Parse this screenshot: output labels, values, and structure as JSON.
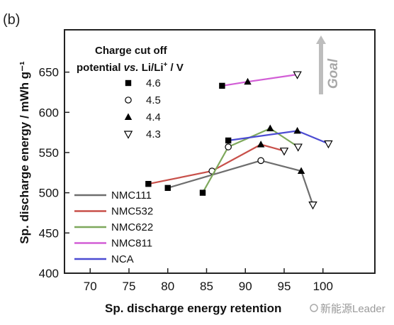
{
  "panel_label": "(b)",
  "watermark": "新能源Leader",
  "goal_label": "Goal",
  "chart_data": {
    "type": "scatter",
    "xlabel": "Sp. discharge energy retention",
    "ylabel": "Sp. discharge energy / mWh g⁻¹",
    "xlim": [
      65,
      105
    ],
    "ylim": [
      375,
      675
    ],
    "xticks": [
      70,
      75,
      80,
      85,
      90,
      95,
      100
    ],
    "yticks": [
      400,
      450,
      500,
      550,
      600,
      650
    ],
    "marker_legend": {
      "title_line1": "Charge cut off",
      "title_line2_pre": "potential ",
      "title_line2_vs": "vs.",
      "title_line2_post": " Li/Li",
      "title_line2_sup": "+",
      "title_line2_unit": " / V",
      "entries": [
        {
          "label": "4.6",
          "marker": "square"
        },
        {
          "label": "4.5",
          "marker": "circle"
        },
        {
          "label": "4.4",
          "marker": "triangle-up"
        },
        {
          "label": "4.3",
          "marker": "triangle-down"
        }
      ]
    },
    "series": [
      {
        "name": "NMC111",
        "color": "#6e6e6e",
        "points": [
          [
            80.0,
            506,
            "square"
          ],
          [
            92.0,
            540,
            "circle"
          ],
          [
            97.2,
            527,
            "triangle-up"
          ],
          [
            98.7,
            485,
            "triangle-down"
          ]
        ]
      },
      {
        "name": "NMC532",
        "color": "#c8504a",
        "points": [
          [
            77.5,
            511,
            "square"
          ],
          [
            85.7,
            527,
            "circle"
          ],
          [
            92.0,
            560,
            "triangle-up"
          ],
          [
            95.0,
            552,
            "triangle-down"
          ]
        ]
      },
      {
        "name": "NMC622",
        "color": "#7ea85c",
        "points": [
          [
            84.5,
            500,
            "square"
          ],
          [
            87.8,
            557,
            "circle"
          ],
          [
            93.2,
            580,
            "triangle-up"
          ],
          [
            96.8,
            557,
            "triangle-down"
          ]
        ]
      },
      {
        "name": "NMC811",
        "color": "#d25ed6",
        "points": [
          [
            87.0,
            633,
            "square"
          ],
          [
            90.3,
            638,
            "triangle-up"
          ],
          [
            96.7,
            647,
            "triangle-down"
          ]
        ]
      },
      {
        "name": "NCA",
        "color": "#4b4bd2",
        "points": [
          [
            87.8,
            565,
            "square"
          ],
          [
            96.7,
            577,
            "triangle-up"
          ],
          [
            100.7,
            561,
            "triangle-down"
          ]
        ]
      }
    ]
  }
}
